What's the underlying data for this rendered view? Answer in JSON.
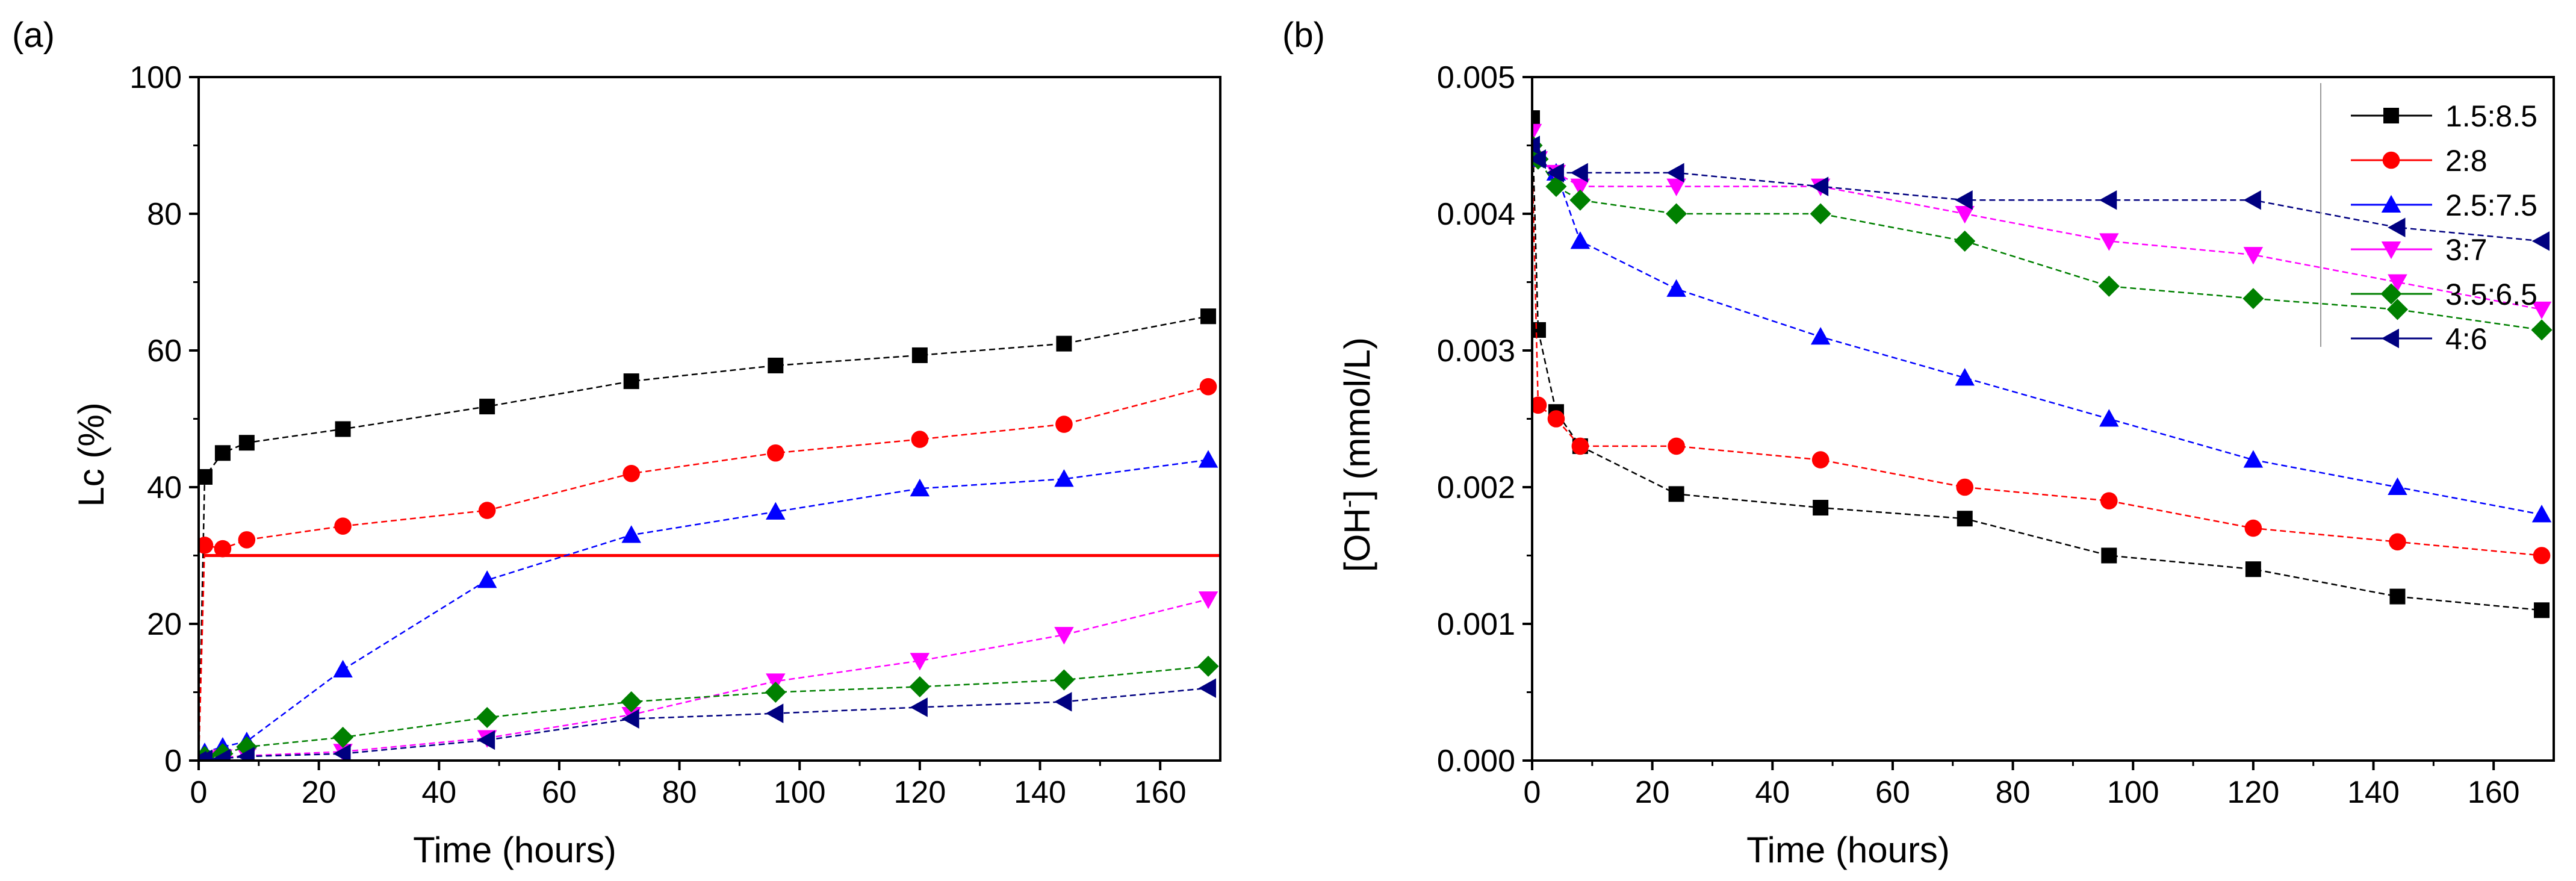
{
  "chart_data": [
    {
      "panel_label": "(a)",
      "type": "line",
      "xlabel": "Time (hours)",
      "ylabel": "Lc (%)",
      "xlim": [
        0,
        170
      ],
      "ylim": [
        0,
        100
      ],
      "xticks": [
        0,
        20,
        40,
        60,
        80,
        100,
        120,
        140,
        160
      ],
      "yticks": [
        0,
        20,
        40,
        60,
        80,
        100
      ],
      "grid": false,
      "legend": "none",
      "x": [
        0,
        1,
        4,
        8,
        24,
        48,
        72,
        96,
        120,
        144,
        168
      ],
      "series": [
        {
          "color": "#000000",
          "marker": "square",
          "values": [
            0,
            41.5,
            45,
            46.5,
            48.5,
            51.8,
            55.5,
            57.8,
            59.3,
            61,
            65
          ]
        },
        {
          "color": "#ff0000",
          "marker": "circle",
          "values": [
            0,
            31.5,
            31,
            32.3,
            34.3,
            36.6,
            42,
            45,
            47,
            49.2,
            54.7
          ]
        },
        {
          "color": "#0000ff",
          "marker": "triangle-up",
          "values": [
            0,
            1.2,
            2,
            2.8,
            13.3,
            26.4,
            33,
            36.4,
            39.8,
            41.2,
            44
          ]
        },
        {
          "color": "#ff00ff",
          "marker": "triangle-down",
          "values": [
            0,
            0.3,
            0.5,
            0.7,
            1.3,
            3.3,
            6.7,
            11.6,
            14.6,
            18.4,
            23.6
          ]
        },
        {
          "color": "#008000",
          "marker": "diamond",
          "values": [
            0,
            0.6,
            1,
            2,
            3.4,
            6.3,
            8.6,
            10,
            10.8,
            11.8,
            13.8
          ]
        },
        {
          "color": "#000080",
          "marker": "triangle-left",
          "values": [
            0,
            0.2,
            0.3,
            0.6,
            1,
            3,
            6.1,
            6.9,
            7.8,
            8.6,
            10.6
          ]
        }
      ],
      "reference_line": {
        "y": 30,
        "color": "#ff0000"
      }
    },
    {
      "panel_label": "(b)",
      "type": "line",
      "xlabel": "Time (hours)",
      "ylabel_parts": [
        "[OH",
        "-",
        "] (mmol/L)"
      ],
      "xlim": [
        0,
        170
      ],
      "ylim": [
        0,
        0.005
      ],
      "xticks": [
        0,
        20,
        40,
        60,
        80,
        100,
        120,
        140,
        160
      ],
      "yticks": [
        "0.000",
        "0.001",
        "0.002",
        "0.003",
        "0.004",
        "0.005"
      ],
      "grid": false,
      "legend": "top-right",
      "x": [
        0,
        1,
        4,
        8,
        24,
        48,
        72,
        96,
        120,
        144,
        168
      ],
      "series": [
        {
          "name": "1.5:8.5",
          "color": "#000000",
          "marker": "square",
          "values": [
            0.0047,
            0.00315,
            0.00255,
            0.0023,
            0.00195,
            0.00185,
            0.00177,
            0.0015,
            0.0014,
            0.0012,
            0.0011
          ]
        },
        {
          "name": "2:8",
          "color": "#ff0000",
          "marker": "circle",
          "values": [
            0.0044,
            0.0026,
            0.0025,
            0.0023,
            0.0023,
            0.0022,
            0.002,
            0.0019,
            0.0017,
            0.0016,
            0.0015
          ]
        },
        {
          "name": "2.5:7.5",
          "color": "#0000ff",
          "marker": "triangle-up",
          "values": [
            0.0045,
            0.0044,
            0.0043,
            0.0038,
            0.00345,
            0.0031,
            0.0028,
            0.0025,
            0.0022,
            0.002,
            0.0018
          ]
        },
        {
          "name": "3:7",
          "color": "#ff00ff",
          "marker": "triangle-down",
          "values": [
            0.0046,
            0.0044,
            0.0043,
            0.0042,
            0.0042,
            0.0042,
            0.004,
            0.0038,
            0.0037,
            0.0035,
            0.0033
          ]
        },
        {
          "name": "3.5:6.5",
          "color": "#008000",
          "marker": "diamond",
          "values": [
            0.0045,
            0.0044,
            0.0042,
            0.0041,
            0.004,
            0.004,
            0.0038,
            0.00347,
            0.00338,
            0.0033,
            0.00315
          ]
        },
        {
          "name": "4:6",
          "color": "#000080",
          "marker": "triangle-left",
          "values": [
            0.0045,
            0.0044,
            0.0043,
            0.0043,
            0.0043,
            0.0042,
            0.0041,
            0.0041,
            0.0041,
            0.0039,
            0.0038
          ]
        }
      ]
    }
  ]
}
